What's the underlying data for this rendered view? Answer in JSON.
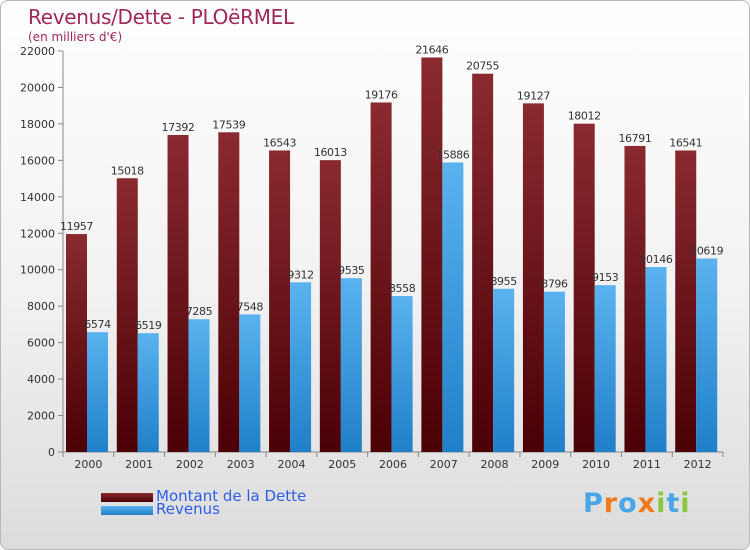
{
  "header": {
    "title": "Revenus/Dette - PLOëRMEL",
    "subtitle": "(en milliers d'€)"
  },
  "legend": [
    {
      "label": "Montant de la Dette",
      "color": "#6b0d12"
    },
    {
      "label": "Revenus",
      "color": "#3a9be0"
    }
  ],
  "logo": {
    "text": "Proxiti",
    "letters": [
      "P",
      "r",
      "o",
      "x",
      "i",
      "t",
      "i"
    ],
    "colors": [
      "#4aa6e6",
      "#f07a1a",
      "#4aa6e6",
      "#f07a1a",
      "#8cc63e",
      "#4aa6e6",
      "#8cc63e"
    ]
  },
  "chart_data": {
    "type": "bar",
    "categories": [
      "2000",
      "2001",
      "2002",
      "2003",
      "2004",
      "2005",
      "2006",
      "2007",
      "2008",
      "2009",
      "2010",
      "2011",
      "2012"
    ],
    "series": [
      {
        "name": "Montant de la Dette",
        "color": "#6b0d12",
        "values": [
          11957,
          15018,
          17392,
          17539,
          16543,
          16013,
          19176,
          21646,
          20755,
          19127,
          18012,
          16791,
          16541
        ]
      },
      {
        "name": "Revenus",
        "color": "#3a9be0",
        "values": [
          6574,
          6519,
          7285,
          7548,
          9312,
          9535,
          8558,
          15886,
          8955,
          8796,
          9153,
          10146,
          10619
        ]
      }
    ],
    "yticks": [
      0,
      2000,
      4000,
      6000,
      8000,
      10000,
      12000,
      14000,
      16000,
      18000,
      20000,
      22000
    ],
    "ylim": [
      0,
      22000
    ],
    "grid": false,
    "legend_position": "bottom-left"
  }
}
